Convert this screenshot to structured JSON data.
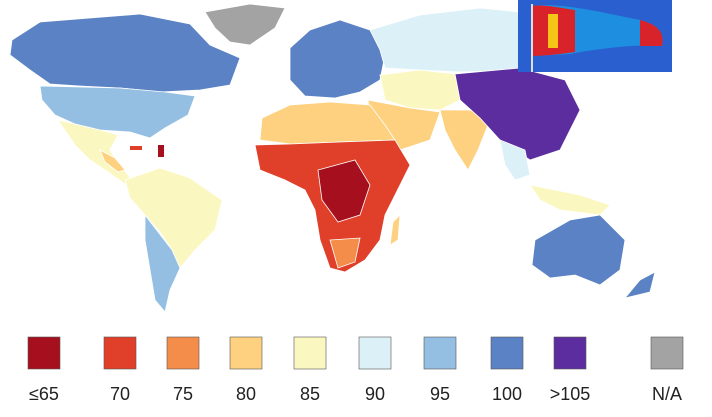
{
  "legend": {
    "items": [
      {
        "label": "≤65",
        "color": "#a50f1e"
      },
      {
        "label": "70",
        "color": "#e0402a"
      },
      {
        "label": "75",
        "color": "#f58d4a"
      },
      {
        "label": "80",
        "color": "#fdd17f"
      },
      {
        "label": "85",
        "color": "#fbf7c0"
      },
      {
        "label": "90",
        "color": "#dcf0f8"
      },
      {
        "label": "95",
        "color": "#94bfe2"
      },
      {
        "label": "100",
        "color": "#5b82c4"
      },
      {
        "label": ">105",
        "color": "#5b2d9e"
      },
      {
        "label": "N/A",
        "color": "#a3a3a3"
      }
    ]
  }
}
